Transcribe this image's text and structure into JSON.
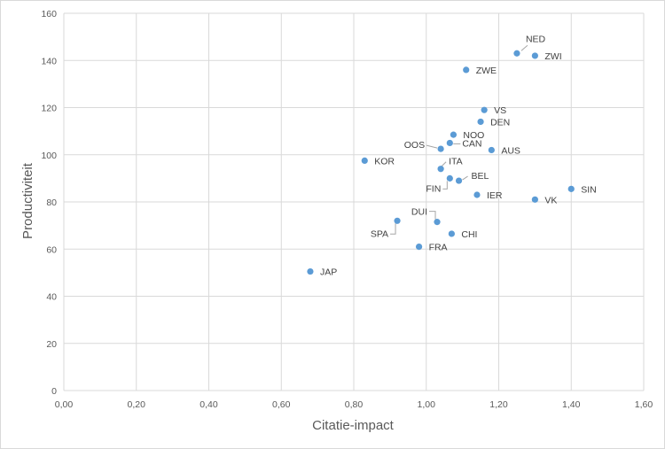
{
  "chart_data": {
    "type": "scatter",
    "xlabel": "Citatie-impact",
    "ylabel": "Productiviteit",
    "xlim": [
      0,
      1.6
    ],
    "ylim": [
      0,
      160
    ],
    "xticks": [
      "0,00",
      "0,20",
      "0,40",
      "0,60",
      "0,80",
      "1,00",
      "1,20",
      "1,40",
      "1,60"
    ],
    "yticks": [
      "0",
      "20",
      "40",
      "60",
      "80",
      "100",
      "120",
      "140",
      "160"
    ],
    "grid": true,
    "marker_color": "#5b9bd5",
    "points": [
      {
        "label": "NED",
        "x": 1.25,
        "y": 143
      },
      {
        "label": "ZWI",
        "x": 1.3,
        "y": 142
      },
      {
        "label": "ZWE",
        "x": 1.11,
        "y": 136
      },
      {
        "label": "VS",
        "x": 1.16,
        "y": 119
      },
      {
        "label": "DEN",
        "x": 1.15,
        "y": 114
      },
      {
        "label": "NOO",
        "x": 1.075,
        "y": 108.5
      },
      {
        "label": "CAN",
        "x": 1.065,
        "y": 105
      },
      {
        "label": "OOS",
        "x": 1.04,
        "y": 102.5
      },
      {
        "label": "AUS",
        "x": 1.18,
        "y": 102
      },
      {
        "label": "KOR",
        "x": 0.83,
        "y": 97.5
      },
      {
        "label": "ITA",
        "x": 1.04,
        "y": 94
      },
      {
        "label": "BEL",
        "x": 1.09,
        "y": 89
      },
      {
        "label": "FIN",
        "x": 1.065,
        "y": 90
      },
      {
        "label": "IER",
        "x": 1.14,
        "y": 83
      },
      {
        "label": "SIN",
        "x": 1.4,
        "y": 85.5
      },
      {
        "label": "VK",
        "x": 1.3,
        "y": 81
      },
      {
        "label": "DUI",
        "x": 1.03,
        "y": 71.5
      },
      {
        "label": "SPA",
        "x": 0.92,
        "y": 72
      },
      {
        "label": "CHI",
        "x": 1.07,
        "y": 66.5
      },
      {
        "label": "FRA",
        "x": 0.98,
        "y": 61
      },
      {
        "label": "JAP",
        "x": 0.68,
        "y": 50.5
      }
    ]
  }
}
